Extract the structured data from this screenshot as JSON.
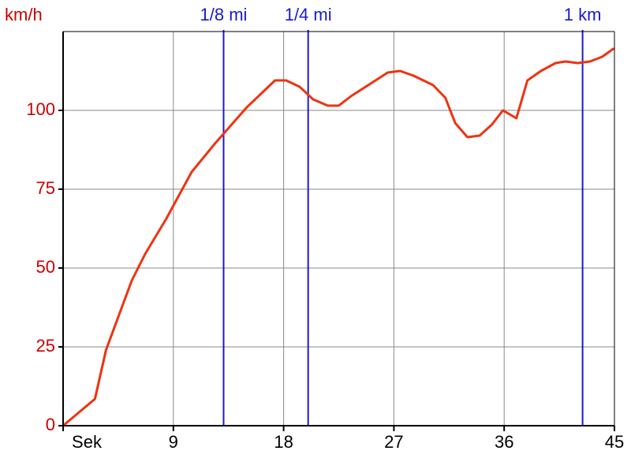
{
  "chart_data": {
    "type": "line",
    "title": "",
    "ylabel": "km/h",
    "xlabel": "Sek",
    "xlim": [
      0,
      45
    ],
    "ylim": [
      0,
      125
    ],
    "grid": true,
    "x_ticks": [
      0,
      9,
      18,
      27,
      36,
      45
    ],
    "x_tick_labels": [
      "Sek",
      "9",
      "18",
      "27",
      "36",
      "45"
    ],
    "y_ticks": [
      0,
      25,
      50,
      75,
      100
    ],
    "y_tick_labels": [
      "0",
      "25",
      "50",
      "75",
      "100"
    ],
    "colors": {
      "series": "#ee3311",
      "axis_labels": "#cc0000",
      "markers": "#1a1acc",
      "grid": "#888888",
      "axes": "#000000"
    },
    "markers": [
      {
        "label": "1/8 mi",
        "x": 13.1
      },
      {
        "label": "1/4 mi",
        "x": 20.0
      },
      {
        "label": "1 km",
        "x": 42.4
      }
    ],
    "series": [
      {
        "x": [
          0,
          2.6,
          3.5,
          5.6,
          6.7,
          8.4,
          10.5,
          12.4,
          15.0,
          17.3,
          18.2,
          19.3,
          20.4,
          21.6,
          22.5,
          23.5,
          25.3,
          26.5,
          27.5,
          28.6,
          30.2,
          31.2,
          32.0,
          33.0,
          34.0,
          35.0,
          35.9,
          37.0,
          37.9,
          39.0,
          40.2,
          41.0,
          42.0,
          43.0,
          44.0,
          44.9
        ],
        "y": [
          0,
          8.5,
          24,
          46,
          54.5,
          65.5,
          80.5,
          89.5,
          101,
          109.5,
          109.5,
          107.5,
          103.5,
          101.5,
          101.5,
          104.5,
          109,
          112,
          112.5,
          111,
          108,
          104,
          96,
          91.5,
          92,
          95.5,
          100,
          97.5,
          109.5,
          112.5,
          115,
          115.5,
          115,
          115.5,
          117,
          119.5
        ]
      }
    ]
  }
}
